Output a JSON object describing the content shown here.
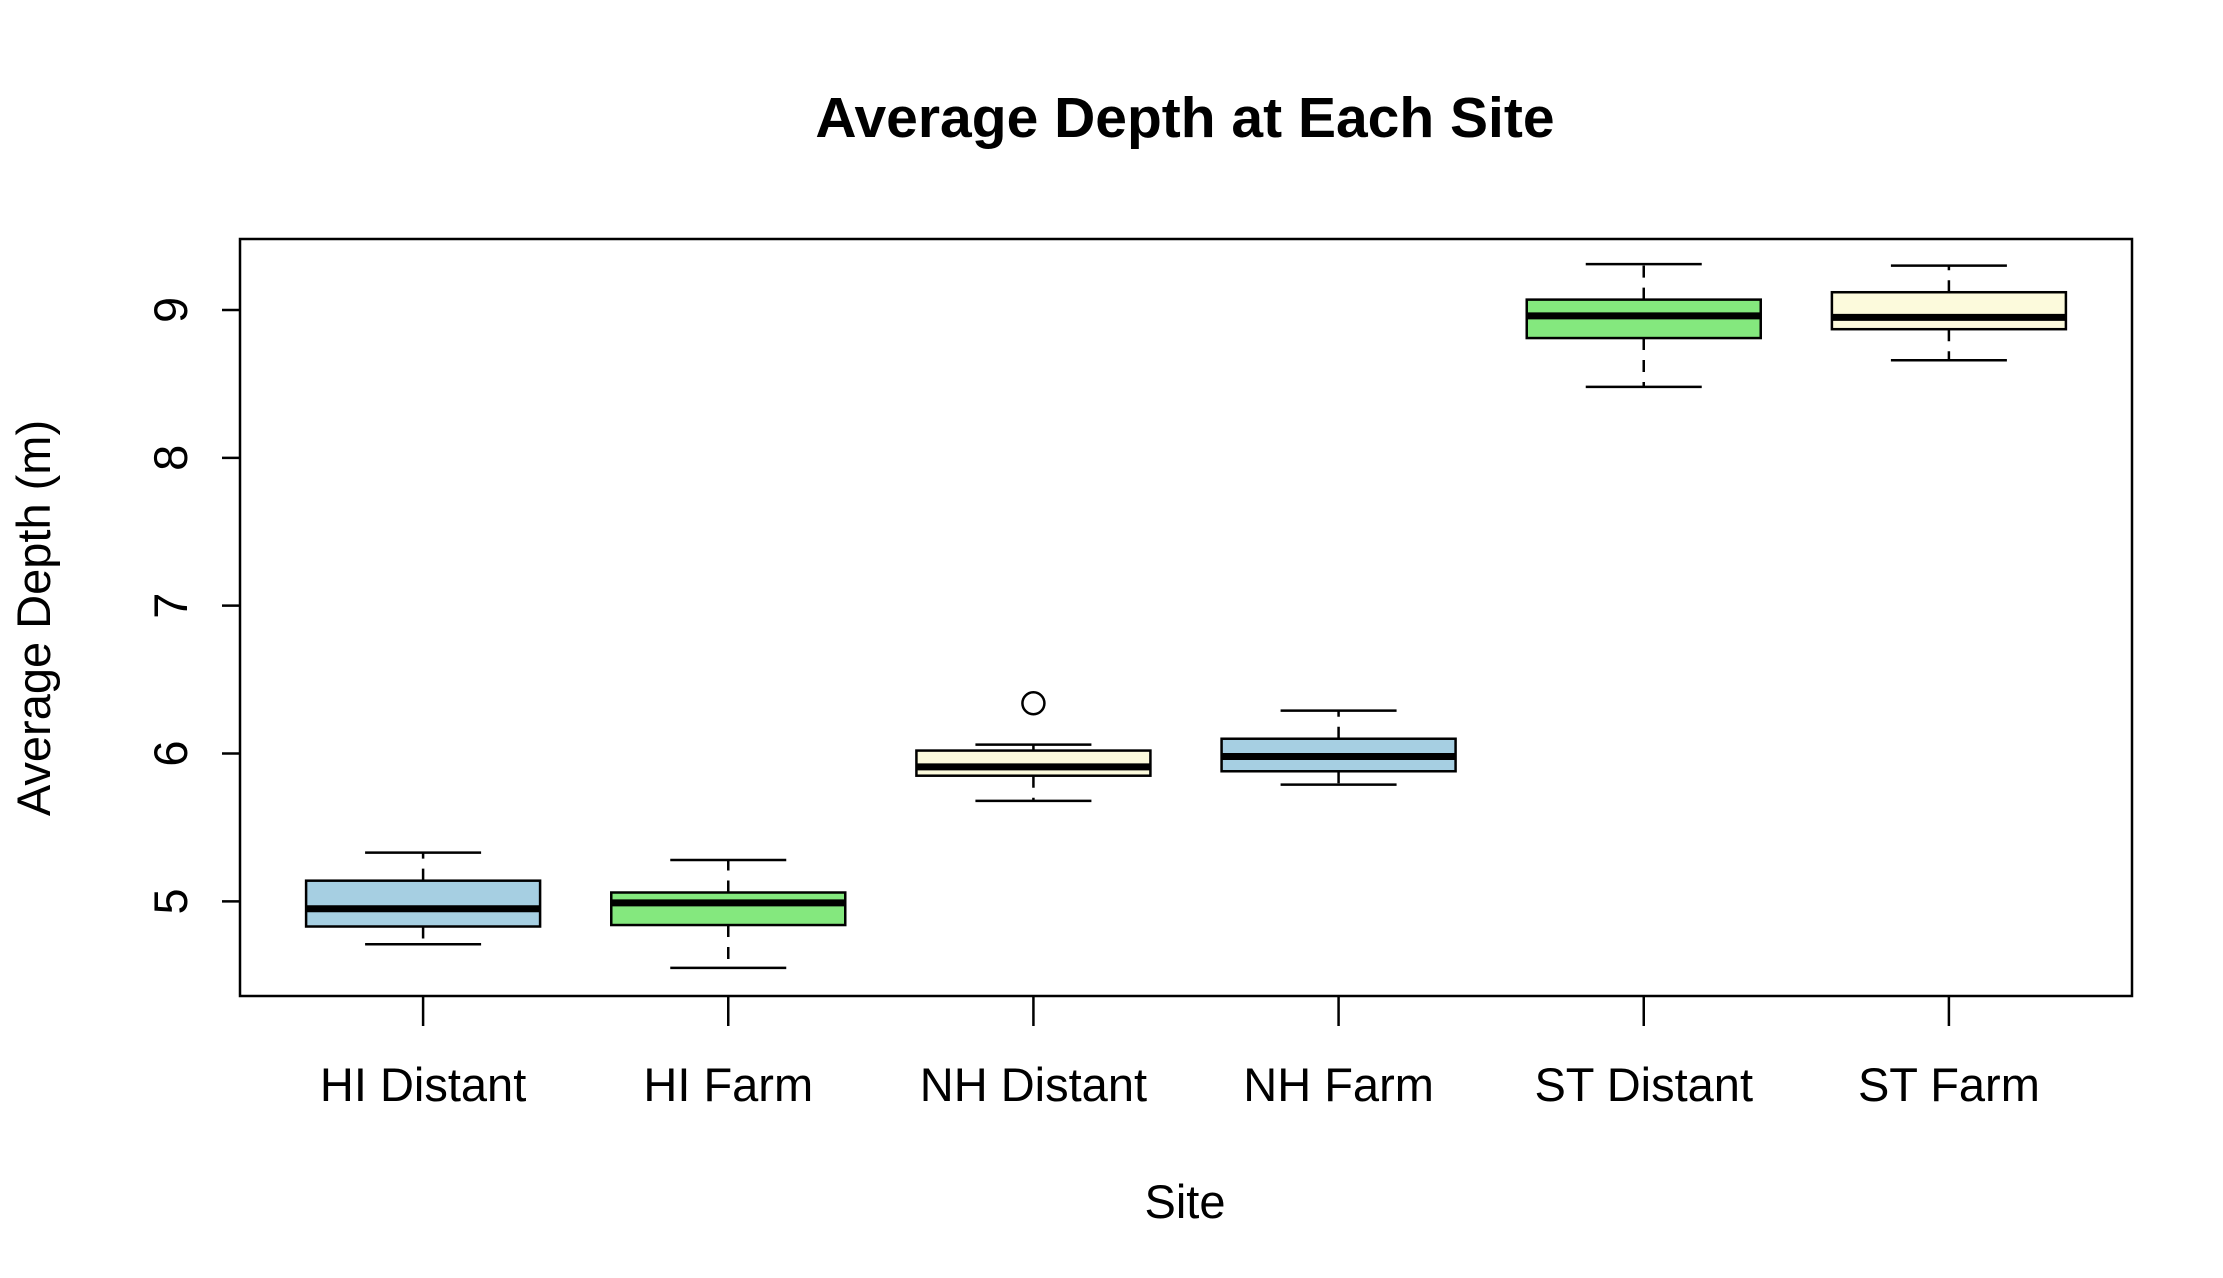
{
  "chart_data": {
    "type": "box",
    "title": "Average Depth at Each Site",
    "xlabel": "Site",
    "ylabel": "Average Depth (m)",
    "ylim": [
      4.36,
      9.48
    ],
    "yticks": [
      5,
      6,
      7,
      8,
      9
    ],
    "categories": [
      "HI Distant",
      "HI Farm",
      "NH Distant",
      "NH Farm",
      "ST Distant",
      "ST Farm"
    ],
    "boxes": [
      {
        "category": "HI Distant",
        "min": 4.71,
        "q1": 4.83,
        "median": 4.95,
        "q3": 5.14,
        "max": 5.33,
        "outliers": [],
        "color": "#a6cfe2"
      },
      {
        "category": "HI Farm",
        "min": 4.55,
        "q1": 4.84,
        "median": 4.99,
        "q3": 5.06,
        "max": 5.28,
        "outliers": [],
        "color": "#84e87e"
      },
      {
        "category": "NH Distant",
        "min": 5.68,
        "q1": 5.85,
        "median": 5.91,
        "q3": 6.02,
        "max": 6.06,
        "outliers": [
          6.34
        ],
        "color": "#fcfadc"
      },
      {
        "category": "NH Farm",
        "min": 5.79,
        "q1": 5.88,
        "median": 5.98,
        "q3": 6.1,
        "max": 6.29,
        "outliers": [],
        "color": "#a6cfe2"
      },
      {
        "category": "ST Distant",
        "min": 8.48,
        "q1": 8.81,
        "median": 8.96,
        "q3": 9.07,
        "max": 9.31,
        "outliers": [],
        "color": "#84e87e"
      },
      {
        "category": "ST Farm",
        "min": 8.66,
        "q1": 8.87,
        "median": 8.95,
        "q3": 9.12,
        "max": 9.3,
        "outliers": [],
        "color": "#fcfadc"
      }
    ],
    "grid": false,
    "legend": "none"
  }
}
